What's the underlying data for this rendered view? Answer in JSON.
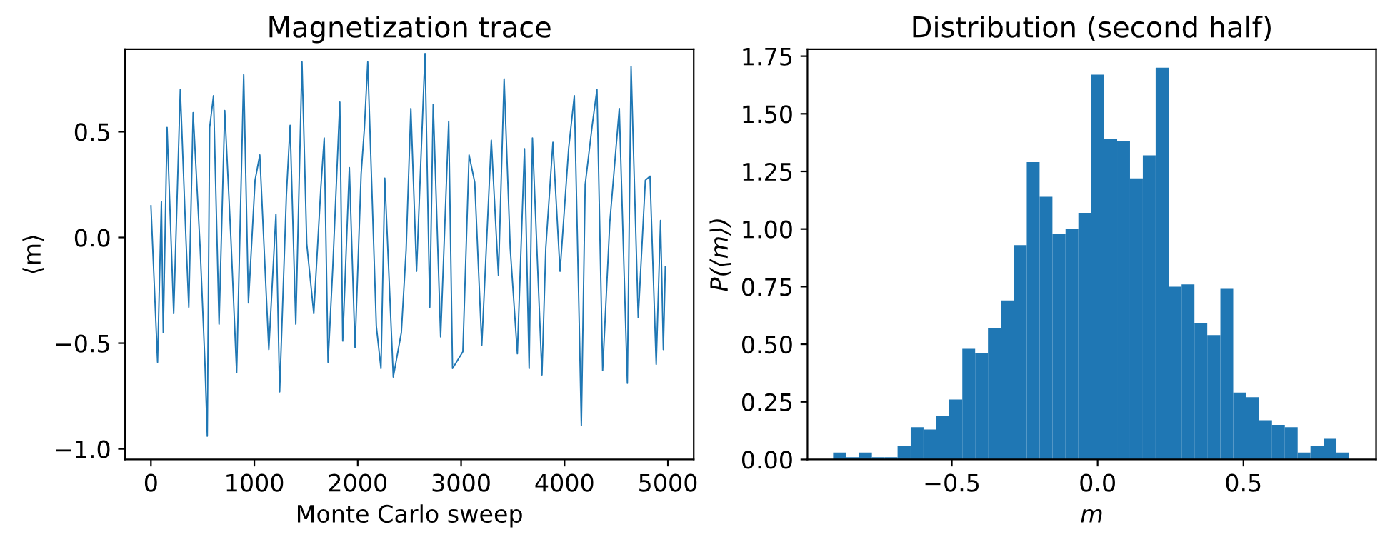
{
  "chart_data": [
    {
      "type": "line",
      "title": "Magnetization trace",
      "xlabel": "Monte Carlo sweep",
      "ylabel": "⟨m⟩",
      "x": [
        0,
        64,
        101,
        119,
        156,
        220,
        284,
        339,
        366,
        408,
        476,
        522,
        545,
        568,
        605,
        659,
        714,
        774,
        829,
        897,
        943,
        1007,
        1053,
        1140,
        1209,
        1245,
        1310,
        1346,
        1401,
        1461,
        1507,
        1575,
        1644,
        1676,
        1713,
        1758,
        1827,
        1855,
        1919,
        1974,
        2033,
        2065,
        2097,
        2180,
        2225,
        2262,
        2344,
        2422,
        2468,
        2514,
        2569,
        2651,
        2697,
        2730,
        2802,
        2880,
        2917,
        3017,
        3077,
        3132,
        3200,
        3292,
        3361,
        3416,
        3475,
        3544,
        3613,
        3658,
        3690,
        3782,
        3819,
        3888,
        3957,
        4040,
        4095,
        4141,
        4163,
        4200,
        4268,
        4314,
        4369,
        4438,
        4530,
        4608,
        4644,
        4713,
        4782,
        4827,
        4887,
        4929,
        4956,
        4975
      ],
      "series": [
        {
          "color": "#1f77b4",
          "values": [
            0.15,
            -0.59,
            0.17,
            -0.45,
            0.52,
            -0.36,
            0.7,
            -0.01,
            -0.33,
            0.59,
            -0.05,
            -0.59,
            -0.94,
            0.52,
            0.67,
            -0.41,
            0.6,
            -0.01,
            -0.64,
            0.77,
            -0.31,
            0.27,
            0.39,
            -0.53,
            0.11,
            -0.73,
            0.2,
            0.53,
            -0.41,
            0.83,
            -0.03,
            -0.36,
            0.24,
            0.47,
            -0.59,
            -0.15,
            0.64,
            -0.49,
            0.33,
            -0.52,
            0.3,
            0.52,
            0.83,
            -0.42,
            -0.62,
            0.28,
            -0.66,
            -0.45,
            -0.06,
            0.61,
            -0.16,
            0.87,
            -0.33,
            0.63,
            -0.47,
            0.55,
            -0.62,
            -0.54,
            0.39,
            0.26,
            -0.51,
            0.46,
            -0.18,
            0.75,
            -0.05,
            -0.55,
            0.42,
            -0.62,
            0.47,
            -0.65,
            -0.05,
            0.45,
            -0.16,
            0.42,
            0.67,
            -0.37,
            -0.89,
            0.25,
            0.53,
            0.7,
            -0.63,
            0.07,
            0.61,
            -0.69,
            0.81,
            -0.38,
            0.27,
            0.29,
            -0.6,
            0.08,
            -0.53,
            -0.14
          ]
        }
      ],
      "xlim": [
        -250,
        5250
      ],
      "xticks": [
        0,
        1000,
        2000,
        3000,
        4000,
        5000
      ],
      "ylim": [
        -1.05,
        0.89
      ],
      "yticks": [
        {
          "value": -1.0,
          "label": "−1.0"
        },
        {
          "value": -0.5,
          "label": "−0.5"
        },
        {
          "value": 0.0,
          "label": "0.0"
        },
        {
          "value": 0.5,
          "label": "0.5"
        }
      ],
      "grid": false,
      "legend": false
    },
    {
      "type": "histogram",
      "title": "Distribution (second half)",
      "xlabel": "m",
      "ylabel": "P(⟨m⟩)",
      "color": "#1f77b4",
      "bins": [
        -0.907,
        -0.863,
        -0.818,
        -0.774,
        -0.73,
        -0.686,
        -0.641,
        -0.597,
        -0.553,
        -0.509,
        -0.464,
        -0.42,
        -0.376,
        -0.332,
        -0.287,
        -0.243,
        -0.199,
        -0.155,
        -0.11,
        -0.066,
        -0.022,
        0.022,
        0.067,
        0.111,
        0.155,
        0.199,
        0.244,
        0.288,
        0.332,
        0.376,
        0.421,
        0.465,
        0.509,
        0.553,
        0.598,
        0.642,
        0.686,
        0.73,
        0.775,
        0.819,
        0.863
      ],
      "values": [
        0.03,
        0.01,
        0.03,
        0.01,
        0.01,
        0.06,
        0.14,
        0.13,
        0.19,
        0.26,
        0.48,
        0.46,
        0.57,
        0.69,
        0.93,
        1.29,
        1.14,
        0.98,
        1.0,
        1.07,
        1.67,
        1.39,
        1.38,
        1.22,
        1.32,
        1.7,
        0.75,
        0.76,
        0.59,
        0.54,
        0.74,
        0.29,
        0.27,
        0.17,
        0.15,
        0.14,
        0.03,
        0.06,
        0.09,
        0.03
      ],
      "xlim": [
        -0.995,
        0.955
      ],
      "xticks": [
        {
          "value": -0.5,
          "label": "−0.5"
        },
        {
          "value": 0.0,
          "label": "0.0"
        },
        {
          "value": 0.5,
          "label": "0.5"
        }
      ],
      "ylim": [
        0,
        1.78
      ],
      "yticks": [
        {
          "value": 0.0,
          "label": "0.00"
        },
        {
          "value": 0.25,
          "label": "0.25"
        },
        {
          "value": 0.5,
          "label": "0.50"
        },
        {
          "value": 0.75,
          "label": "0.75"
        },
        {
          "value": 1.0,
          "label": "1.00"
        },
        {
          "value": 1.25,
          "label": "1.25"
        },
        {
          "value": 1.5,
          "label": "1.50"
        },
        {
          "value": 1.75,
          "label": "1.75"
        }
      ],
      "grid": false,
      "legend": false
    }
  ]
}
